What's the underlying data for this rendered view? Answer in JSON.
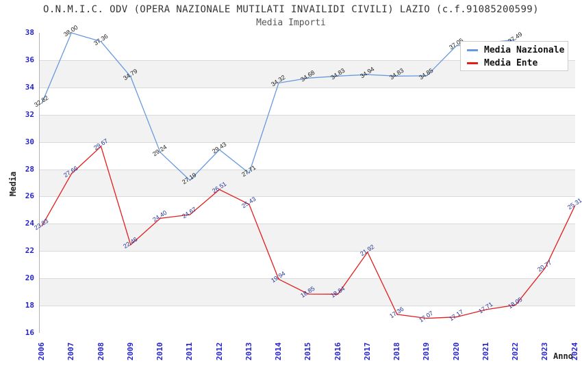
{
  "title": "O.N.M.I.C. ODV (OPERA NAZIONALE MUTILATI INVAILIDI CIVILI) LAZIO (c.f.91085200599)",
  "subtitle": "Media Importi",
  "chart_data": {
    "type": "line",
    "x": [
      2006,
      2007,
      2008,
      2009,
      2010,
      2011,
      2012,
      2013,
      2014,
      2015,
      2016,
      2017,
      2018,
      2019,
      2020,
      2021,
      2022,
      2023,
      2024
    ],
    "xlabel": "Anno",
    "ylabel": "Media",
    "ylim": [
      16,
      38
    ],
    "ytick_step": 2,
    "grid": "horizontal-bands",
    "legend_position": "top-right",
    "series": [
      {
        "name": "Media Nazionale",
        "color": "#6699dd",
        "label_color": "#1a1a1a",
        "values": [
          32.82,
          38.0,
          37.36,
          34.79,
          29.24,
          27.19,
          29.43,
          27.71,
          34.32,
          34.68,
          34.83,
          34.94,
          34.83,
          34.85,
          37.05,
          null,
          37.49,
          null,
          null
        ],
        "labels": [
          "32.82",
          "38.00",
          "37.36",
          "34.79",
          "29.24",
          "27.19",
          "29.43",
          "27.71",
          "34.32",
          "34.68",
          "34.83",
          "34.94",
          "34.83",
          "34.85",
          "37.05",
          null,
          "37.49",
          null,
          null
        ]
      },
      {
        "name": "Media Ente",
        "color": "#e31c1c",
        "label_color": "#223399",
        "values": [
          23.83,
          27.66,
          29.67,
          22.46,
          24.4,
          24.67,
          26.51,
          25.43,
          19.94,
          18.85,
          18.84,
          21.92,
          17.36,
          17.07,
          17.17,
          17.71,
          18.05,
          20.77,
          25.31
        ],
        "labels": [
          "23.83",
          "27.66",
          "29.67",
          "22.46",
          "24.40",
          "24.67",
          "26.51",
          "25.43",
          "19.94",
          "18.85",
          "18.84",
          "21.92",
          "17.36",
          "17.07",
          "17.17",
          "17.71",
          "18.05",
          "20.77",
          "25.31"
        ]
      }
    ]
  },
  "colors": {
    "tick_label": "#2424cc",
    "band_gray": "#f2f2f2",
    "gridline": "#d9d9d9",
    "plot_border": "#b4b4b4",
    "title_text": "#333333",
    "subtitle_text": "#555555"
  }
}
